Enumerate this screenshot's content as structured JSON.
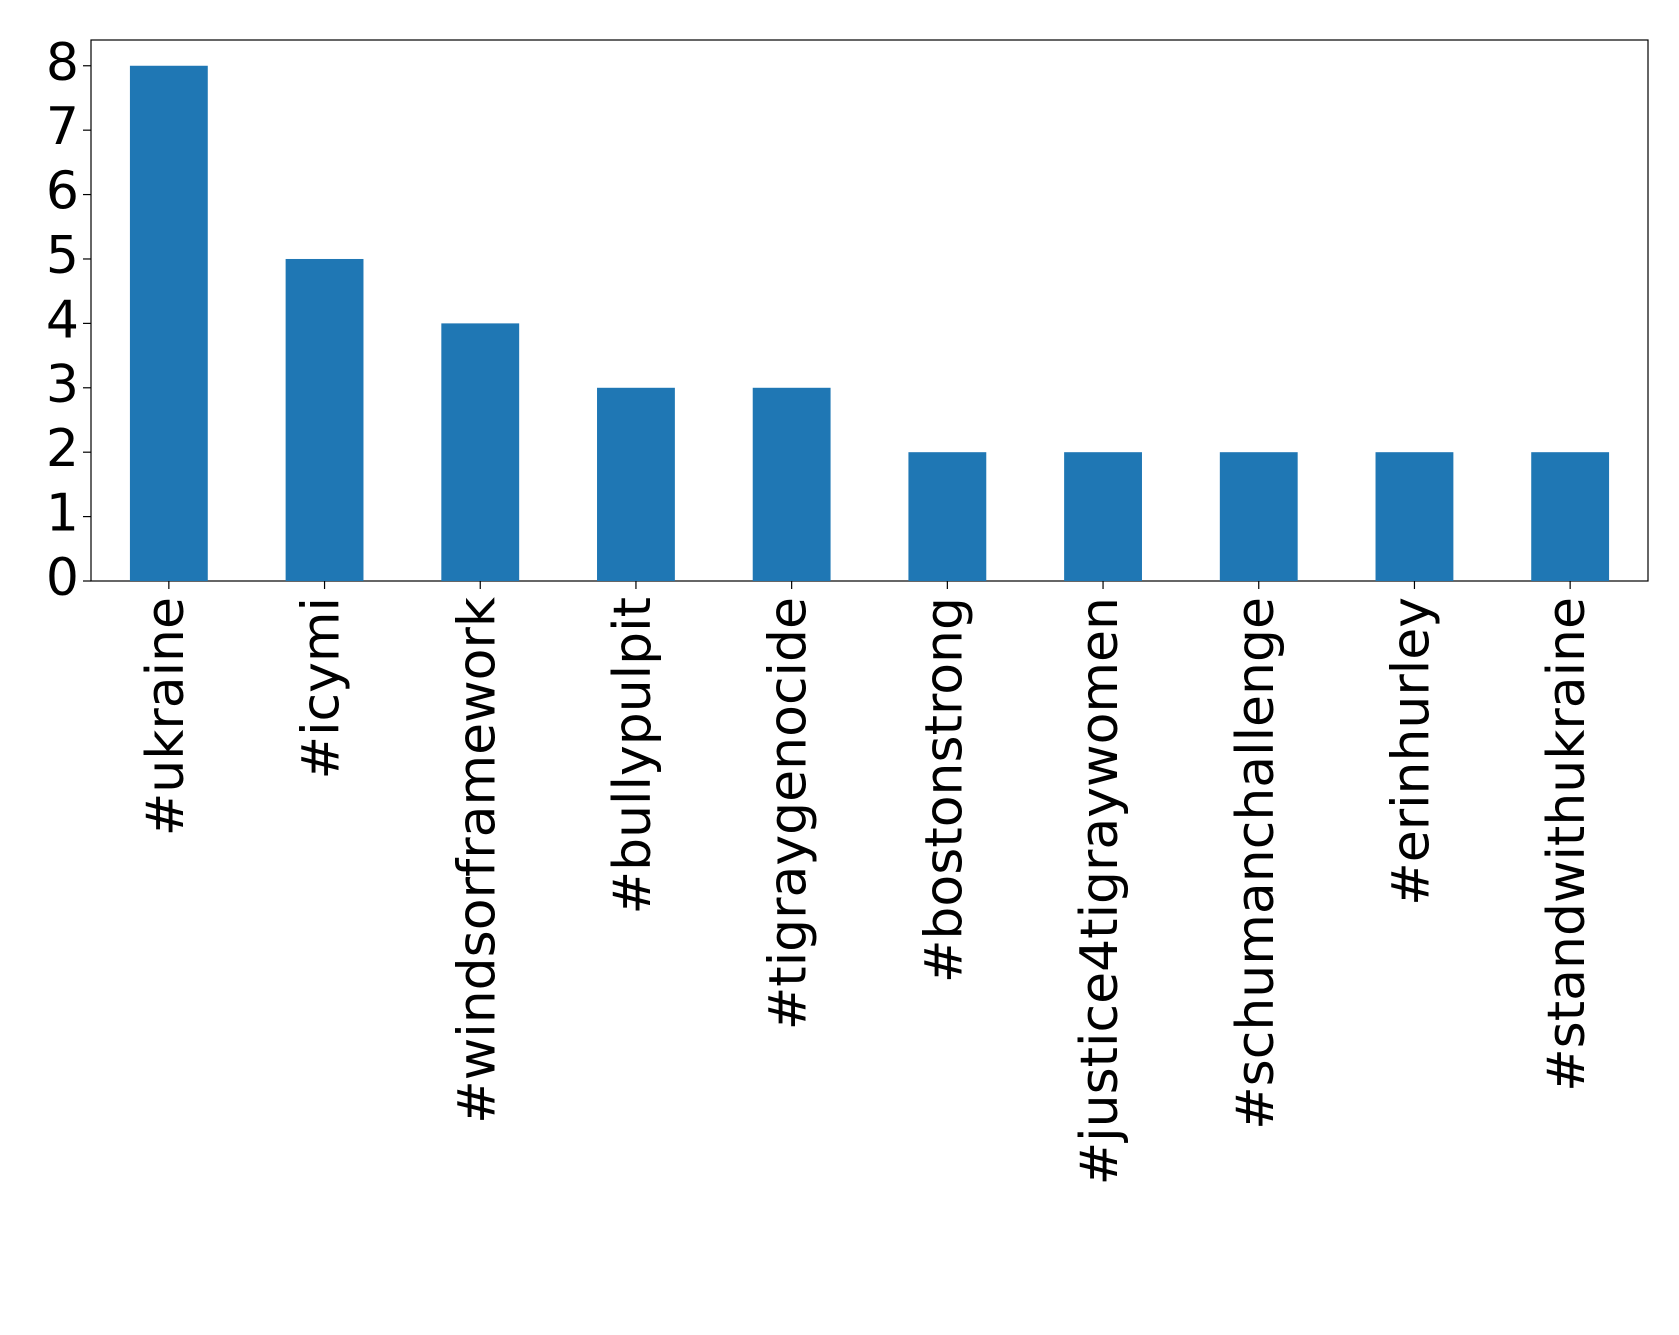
{
  "chart_data": {
    "type": "bar",
    "categories": [
      "#ukraine",
      "#icymi",
      "#windsorframework",
      "#bullypulpit",
      "#tigraygenocide",
      "#bostonstrong",
      "#justice4tigraywomen",
      "#schumanchallenge",
      "#erinhurley",
      "#standwithukraine"
    ],
    "values": [
      8,
      5,
      4,
      3,
      3,
      2,
      2,
      2,
      2,
      2
    ],
    "color": "#1f77b4",
    "ylim": [
      0,
      8.4
    ],
    "yticks": [
      0,
      1,
      2,
      3,
      4,
      5,
      6,
      7,
      8
    ],
    "grid": false
  }
}
